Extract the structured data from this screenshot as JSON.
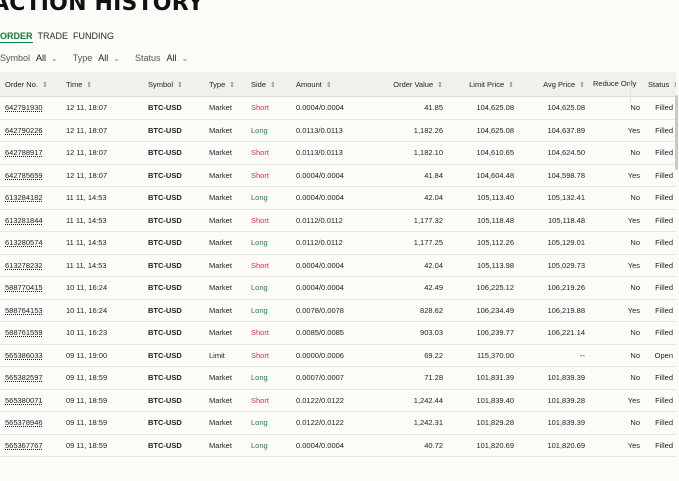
{
  "page": {
    "title": "ACTION HISTORY"
  },
  "tabs": [
    {
      "label": "ORDER",
      "active": true
    },
    {
      "label": "TRADE",
      "active": false
    },
    {
      "label": "FUNDING",
      "active": false
    }
  ],
  "filters": [
    {
      "label": "Symbol",
      "value": "All"
    },
    {
      "label": "Type",
      "value": "All"
    },
    {
      "label": "Status",
      "value": "All"
    }
  ],
  "table": {
    "columns": [
      {
        "label": "Order No."
      },
      {
        "label": "Time"
      },
      {
        "label": "Symbol"
      },
      {
        "label": "Type"
      },
      {
        "label": "Side"
      },
      {
        "label": "Amount"
      },
      {
        "label": "Order Value"
      },
      {
        "label": "Limit Price"
      },
      {
        "label": "Avg Price"
      },
      {
        "label": "Reduce Only"
      },
      {
        "label": "Status"
      }
    ],
    "rows": [
      {
        "order_no": "642791930",
        "time": "12 11, 18:07",
        "symbol": "BTC-USD",
        "type": "Market",
        "side": "Short",
        "amount": "0.0004/0.0004",
        "order_value": "41.85",
        "limit_price": "104,625.08",
        "avg_price": "104,625.08",
        "reduce_only": "No",
        "status": "Filled"
      },
      {
        "order_no": "642790226",
        "time": "12 11, 18:07",
        "symbol": "BTC-USD",
        "type": "Market",
        "side": "Long",
        "amount": "0.0113/0.0113",
        "order_value": "1,182.26",
        "limit_price": "104,625.08",
        "avg_price": "104,637.89",
        "reduce_only": "Yes",
        "status": "Filled"
      },
      {
        "order_no": "642788917",
        "time": "12 11, 18:07",
        "symbol": "BTC-USD",
        "type": "Market",
        "side": "Short",
        "amount": "0.0113/0.0113",
        "order_value": "1,182.10",
        "limit_price": "104,610.65",
        "avg_price": "104,624.50",
        "reduce_only": "No",
        "status": "Filled"
      },
      {
        "order_no": "642785659",
        "time": "12 11, 18:07",
        "symbol": "BTC-USD",
        "type": "Market",
        "side": "Short",
        "amount": "0.0004/0.0004",
        "order_value": "41.84",
        "limit_price": "104,604.48",
        "avg_price": "104,598.78",
        "reduce_only": "Yes",
        "status": "Filled"
      },
      {
        "order_no": "613284182",
        "time": "11 11, 14:53",
        "symbol": "BTC-USD",
        "type": "Market",
        "side": "Long",
        "amount": "0.0004/0.0004",
        "order_value": "42.04",
        "limit_price": "105,113.40",
        "avg_price": "105,132.41",
        "reduce_only": "No",
        "status": "Filled"
      },
      {
        "order_no": "613281844",
        "time": "11 11, 14:53",
        "symbol": "BTC-USD",
        "type": "Market",
        "side": "Short",
        "amount": "0.0112/0.0112",
        "order_value": "1,177.32",
        "limit_price": "105,118.48",
        "avg_price": "105,118.48",
        "reduce_only": "Yes",
        "status": "Filled"
      },
      {
        "order_no": "613280574",
        "time": "11 11, 14:53",
        "symbol": "BTC-USD",
        "type": "Market",
        "side": "Long",
        "amount": "0.0112/0.0112",
        "order_value": "1,177.25",
        "limit_price": "105,112.26",
        "avg_price": "105,129.01",
        "reduce_only": "No",
        "status": "Filled"
      },
      {
        "order_no": "613278232",
        "time": "11 11, 14:53",
        "symbol": "BTC-USD",
        "type": "Market",
        "side": "Short",
        "amount": "0.0004/0.0004",
        "order_value": "42.04",
        "limit_price": "105,113.98",
        "avg_price": "105,029.73",
        "reduce_only": "Yes",
        "status": "Filled"
      },
      {
        "order_no": "588770415",
        "time": "10 11, 16:24",
        "symbol": "BTC-USD",
        "type": "Market",
        "side": "Long",
        "amount": "0.0004/0.0004",
        "order_value": "42.49",
        "limit_price": "106,225.12",
        "avg_price": "106,219.26",
        "reduce_only": "No",
        "status": "Filled"
      },
      {
        "order_no": "588764153",
        "time": "10 11, 16:24",
        "symbol": "BTC-USD",
        "type": "Market",
        "side": "Long",
        "amount": "0.0078/0.0078",
        "order_value": "828.62",
        "limit_price": "106,234.49",
        "avg_price": "106,219.88",
        "reduce_only": "Yes",
        "status": "Filled"
      },
      {
        "order_no": "588761559",
        "time": "10 11, 16:23",
        "symbol": "BTC-USD",
        "type": "Market",
        "side": "Short",
        "amount": "0.0085/0.0085",
        "order_value": "903.03",
        "limit_price": "106,239.77",
        "avg_price": "106,221.14",
        "reduce_only": "No",
        "status": "Filled"
      },
      {
        "order_no": "565386033",
        "time": "09 11, 19:00",
        "symbol": "BTC-USD",
        "type": "Limit",
        "side": "Short",
        "amount": "0.0000/0.0006",
        "order_value": "69.22",
        "limit_price": "115,370.00",
        "avg_price": "--",
        "reduce_only": "No",
        "status": "Open"
      },
      {
        "order_no": "565382597",
        "time": "09 11, 18:59",
        "symbol": "BTC-USD",
        "type": "Market",
        "side": "Long",
        "amount": "0.0007/0.0007",
        "order_value": "71.28",
        "limit_price": "101,831.39",
        "avg_price": "101,839.39",
        "reduce_only": "No",
        "status": "Filled"
      },
      {
        "order_no": "565380071",
        "time": "09 11, 18:59",
        "symbol": "BTC-USD",
        "type": "Market",
        "side": "Short",
        "amount": "0.0122/0.0122",
        "order_value": "1,242.44",
        "limit_price": "101,839.40",
        "avg_price": "101,839.28",
        "reduce_only": "Yes",
        "status": "Filled"
      },
      {
        "order_no": "565378946",
        "time": "09 11, 18:59",
        "symbol": "BTC-USD",
        "type": "Market",
        "side": "Long",
        "amount": "0.0122/0.0122",
        "order_value": "1,242.31",
        "limit_price": "101,829.28",
        "avg_price": "101,839.39",
        "reduce_only": "No",
        "status": "Filled"
      },
      {
        "order_no": "565367767",
        "time": "09 11, 18:59",
        "symbol": "BTC-USD",
        "type": "Market",
        "side": "Long",
        "amount": "0.0004/0.0004",
        "order_value": "40.72",
        "limit_price": "101,820.69",
        "avg_price": "101,820.69",
        "reduce_only": "Yes",
        "status": "Filled"
      }
    ]
  },
  "icons": {
    "sort": "sort-icon",
    "chevron": "chevron-down-icon"
  },
  "colors": {
    "accent": "#137a3c",
    "long": "#16863f",
    "short": "#d6373b",
    "header_bg": "#f0f0ed"
  }
}
